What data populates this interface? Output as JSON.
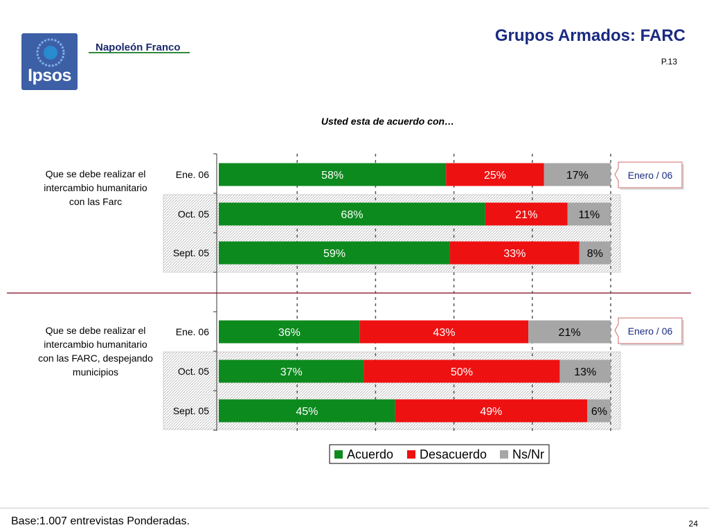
{
  "header": {
    "title": "Grupos Armados: FARC",
    "page_code": "P.13",
    "logo_text": "Ipsos",
    "brand_text": "Napoleón Franco"
  },
  "chart_data": {
    "type": "bar",
    "stacked": true,
    "orientation": "horizontal",
    "percent": true,
    "title": "Usted esta de acuerdo con…",
    "xlim": [
      0,
      100
    ],
    "legend": {
      "placement": "bottom-right"
    },
    "series": [
      {
        "name": "Acuerdo",
        "color": "#0d8a1e"
      },
      {
        "name": "Desacuerdo",
        "color": "#ee1111"
      },
      {
        "name": "Ns/Nr",
        "color": "#a6a6a6"
      }
    ],
    "groups": [
      {
        "question": "Que se debe realizar el intercambio humanitario con las Farc",
        "callout": "Enero / 06",
        "rows": [
          {
            "label": "Ene. 06",
            "values": [
              58,
              25,
              17
            ],
            "labels": [
              "58%",
              "25%",
              "17%"
            ]
          },
          {
            "label": "Oct. 05",
            "values": [
              68,
              21,
              11
            ],
            "labels": [
              "68%",
              "21%",
              "11%"
            ]
          },
          {
            "label": "Sept. 05",
            "values": [
              59,
              33,
              8
            ],
            "labels": [
              "59%",
              "33%",
              "8%"
            ]
          }
        ]
      },
      {
        "question": "Que se debe realizar el intercambio humanitario con las FARC, despejando municipios",
        "callout": "Enero / 06",
        "rows": [
          {
            "label": "Ene. 06",
            "values": [
              36,
              43,
              21
            ],
            "labels": [
              "36%",
              "43%",
              "21%"
            ]
          },
          {
            "label": "Oct. 05",
            "values": [
              37,
              50,
              13
            ],
            "labels": [
              "37%",
              "50%",
              "13%"
            ]
          },
          {
            "label": "Sept. 05",
            "values": [
              45,
              49,
              6
            ],
            "labels": [
              "45%",
              "49%",
              "6%"
            ]
          }
        ]
      }
    ]
  },
  "footer": {
    "base_text": "Base:1.007 entrevistas Ponderadas.",
    "page_number": "24"
  }
}
